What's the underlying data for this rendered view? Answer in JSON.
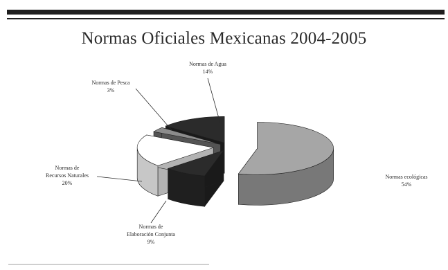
{
  "chart_data": {
    "type": "pie",
    "title": "Normas Oficiales Mexicanas 2004-2005",
    "slices": [
      {
        "label": "Normas ecológicas",
        "value": 54,
        "display": "54%",
        "color": "#a6a6a6"
      },
      {
        "label": "Normas de Elaboración Conjunta",
        "value": 9,
        "display": "9%",
        "color": "#2b2b2b"
      },
      {
        "label": "Normas de Recursos Naturales",
        "value": 20,
        "display": "20%",
        "color": "#ffffff"
      },
      {
        "label": "Normas de Pesca",
        "value": 3,
        "display": "3%",
        "color": "#8c8c8c"
      },
      {
        "label": "Normas de Agua",
        "value": 14,
        "display": "14%",
        "color": "#2b2b2b"
      }
    ],
    "style": "3d-exploded",
    "legend": "none"
  }
}
